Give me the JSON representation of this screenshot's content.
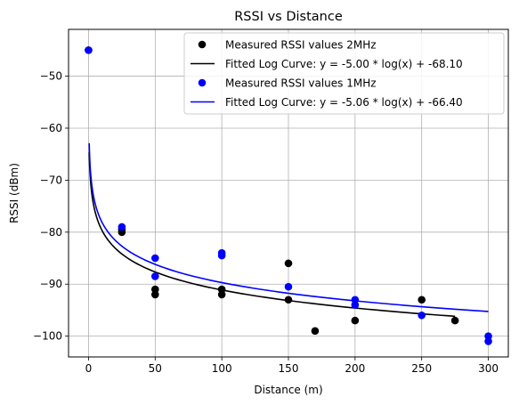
{
  "chart_data": {
    "type": "scatter",
    "title": "RSSI vs Distance",
    "xlabel": "Distance (m)",
    "ylabel": "RSSI (dBm)",
    "xlim": [
      -15,
      315
    ],
    "ylim": [
      -104,
      -41
    ],
    "xticks": [
      0,
      50,
      100,
      150,
      200,
      250,
      300
    ],
    "yticks": [
      -100,
      -90,
      -80,
      -70,
      -60,
      -50
    ],
    "grid": true,
    "legend_position": "top-right",
    "series": [
      {
        "name": "Measured RSSI values 2MHz",
        "kind": "scatter",
        "color": "#000000",
        "points": [
          [
            0,
            -45
          ],
          [
            25,
            -80
          ],
          [
            25,
            -79.5
          ],
          [
            50,
            -91
          ],
          [
            50,
            -92
          ],
          [
            100,
            -91
          ],
          [
            100,
            -92
          ],
          [
            150,
            -86
          ],
          [
            150,
            -93
          ],
          [
            170,
            -99
          ],
          [
            200,
            -97
          ],
          [
            250,
            -93
          ],
          [
            275,
            -97
          ]
        ]
      },
      {
        "name": "Fitted Log Curve: y = -5.00 * log(x) + -68.10",
        "kind": "line",
        "color": "#000000",
        "function": {
          "a": -5.0,
          "b": -68.1
        },
        "x_range": [
          0.5,
          275
        ]
      },
      {
        "name": "Measured RSSI values 1MHz",
        "kind": "scatter",
        "color": "#0000ff",
        "points": [
          [
            0,
            -45
          ],
          [
            25,
            -79
          ],
          [
            50,
            -85
          ],
          [
            50,
            -88.5
          ],
          [
            100,
            -84
          ],
          [
            100,
            -84.5
          ],
          [
            150,
            -90.5
          ],
          [
            200,
            -93
          ],
          [
            200,
            -94
          ],
          [
            250,
            -96
          ],
          [
            300,
            -100
          ],
          [
            300,
            -101
          ]
        ]
      },
      {
        "name": "Fitted Log Curve: y = -5.06 * log(x) + -66.40",
        "kind": "line",
        "color": "#0000ff",
        "function": {
          "a": -5.06,
          "b": -66.4
        },
        "x_range": [
          0.5,
          300
        ]
      }
    ]
  }
}
